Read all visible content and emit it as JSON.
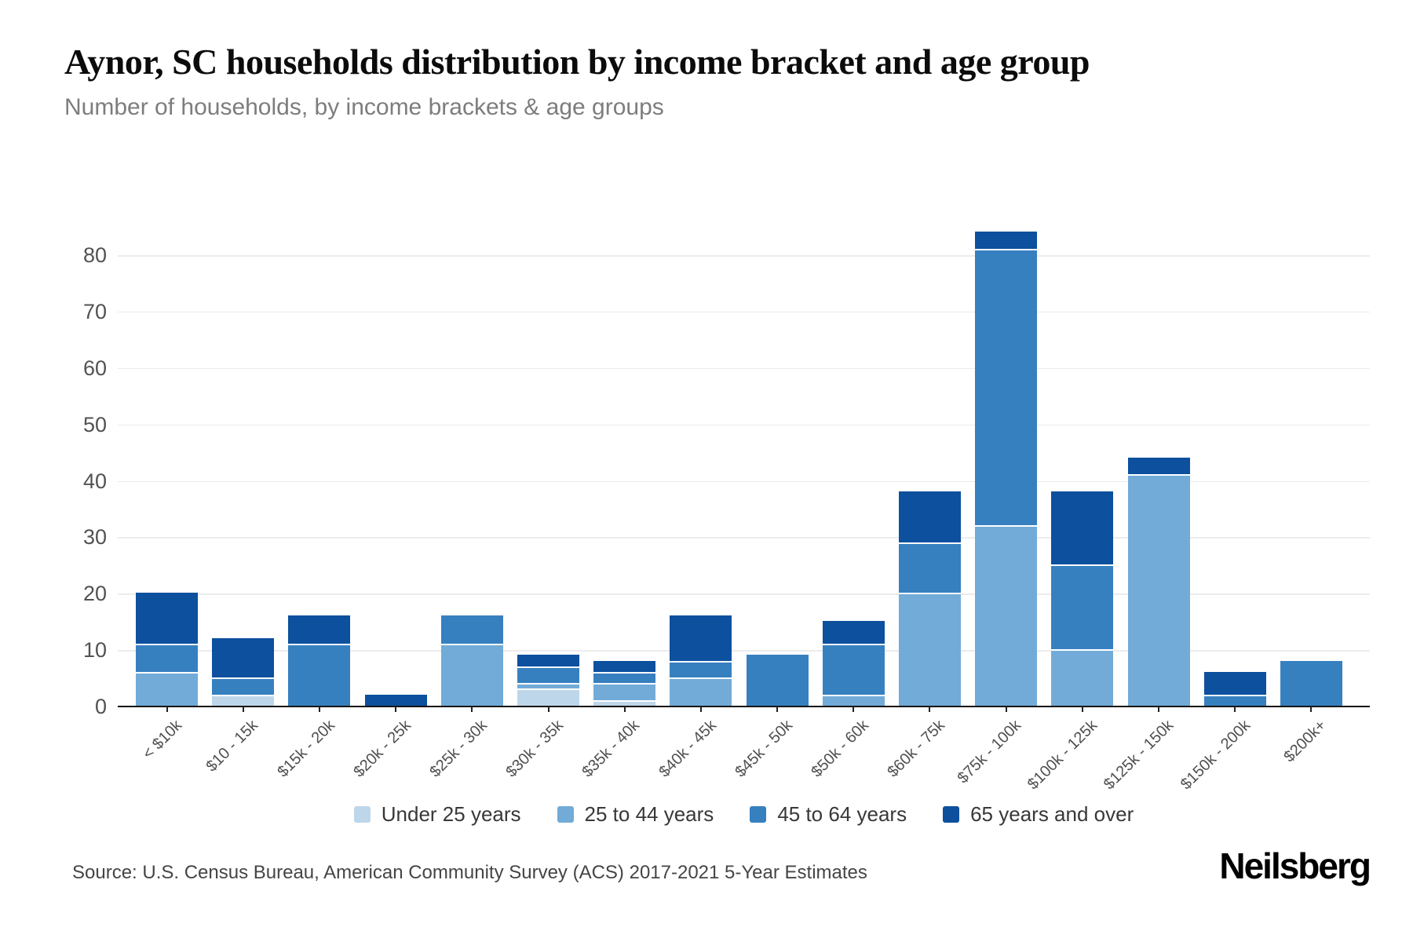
{
  "chart_data": {
    "type": "bar",
    "stacked": true,
    "title": "Aynor, SC households distribution by income bracket and age group",
    "subtitle": "Number of households, by income brackets & age groups",
    "categories": [
      "< $10k",
      "$10 - 15k",
      "$15k - 20k",
      "$20k - 25k",
      "$25k - 30k",
      "$30k - 35k",
      "$35k - 40k",
      "$40k - 45k",
      "$45k - 50k",
      "$50k - 60k",
      "$60k - 75k",
      "$75k - 100k",
      "$100k - 125k",
      "$125k - 150k",
      "$150k - 200k",
      "$200k+"
    ],
    "series": [
      {
        "name": "Under 25 years",
        "color": "#bed6e9",
        "values": [
          0,
          2,
          0,
          0,
          0,
          3,
          1,
          0,
          0,
          0,
          0,
          0,
          0,
          0,
          0,
          0
        ]
      },
      {
        "name": "25 to 44 years",
        "color": "#72abd8",
        "values": [
          6,
          0,
          0,
          0,
          11,
          1,
          3,
          5,
          0,
          2,
          20,
          32,
          10,
          41,
          0,
          0
        ]
      },
      {
        "name": "45 to 64 years",
        "color": "#3780c0",
        "values": [
          5,
          3,
          11,
          0,
          5,
          3,
          2,
          3,
          9,
          9,
          9,
          49,
          15,
          0,
          2,
          8
        ]
      },
      {
        "name": "65 years and over",
        "color": "#0c509e",
        "values": [
          9,
          7,
          5,
          2,
          0,
          2,
          2,
          8,
          0,
          4,
          9,
          3,
          13,
          3,
          4,
          0
        ]
      }
    ],
    "totals": [
      20,
      12,
      16,
      2,
      16,
      9,
      8,
      16,
      9,
      15,
      38,
      84,
      38,
      44,
      6,
      8
    ],
    "ylabel": "",
    "xlabel": "",
    "y_ticks": [
      0,
      10,
      20,
      30,
      40,
      50,
      60,
      70,
      80
    ],
    "ylim": [
      0,
      89
    ],
    "grid": "horizontal",
    "legend_position": "bottom"
  },
  "colors": {
    "background": "#ffffff",
    "gridline": "#ececec",
    "axis_line": "#161616",
    "title": "#0b0b0b",
    "subtitle": "#7d7d7d",
    "tick_label": "#525252",
    "source_text": "#454545"
  },
  "footer": {
    "source": "Source: U.S. Census Bureau, American Community Survey (ACS) 2017-2021 5-Year Estimates",
    "logo": "Neilsberg"
  }
}
